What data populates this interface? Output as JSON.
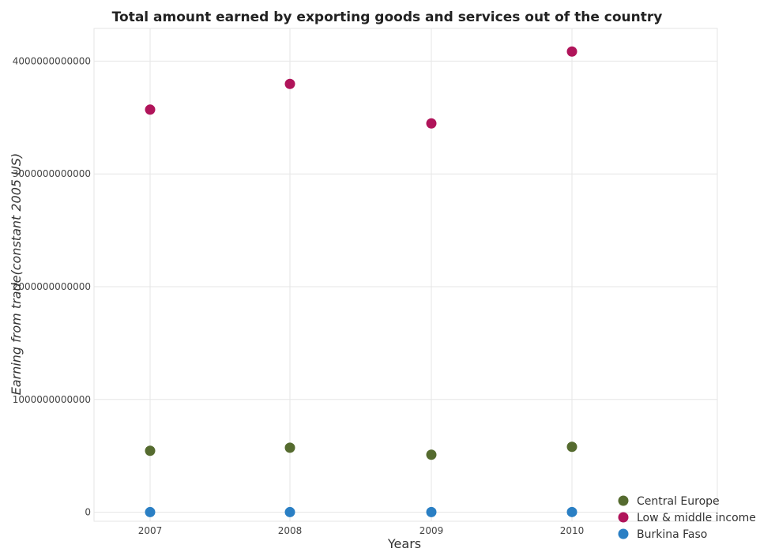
{
  "chart_data": {
    "type": "scatter",
    "title": "Total amount earned by exporting goods and services out of the country",
    "xlabel": "Years",
    "ylabel": "Earning from trade(constant 2005 US)",
    "categories": [
      "2007",
      "2008",
      "2009",
      "2010"
    ],
    "y_ticks": [
      0,
      1000000000000,
      2000000000000,
      3000000000000,
      4000000000000
    ],
    "y_tick_labels": [
      "0",
      "1000000000000",
      "2000000000000",
      "3000000000000",
      "4000000000000"
    ],
    "ylim": [
      -80000000000,
      4290000000000
    ],
    "grid": true,
    "legend_position": "bottom-right",
    "series": [
      {
        "name": "Central Europe",
        "color": "#556b2f",
        "values": [
          545000000000,
          572000000000,
          510000000000,
          580000000000
        ]
      },
      {
        "name": "Low & middle income",
        "color": "#b0145a",
        "values": [
          3570000000000,
          3798000000000,
          3448000000000,
          4085000000000
        ]
      },
      {
        "name": "Burkina Faso",
        "color": "#2a7fc4",
        "values": [
          1000000000,
          1100000000,
          1200000000,
          1700000000
        ]
      }
    ]
  }
}
